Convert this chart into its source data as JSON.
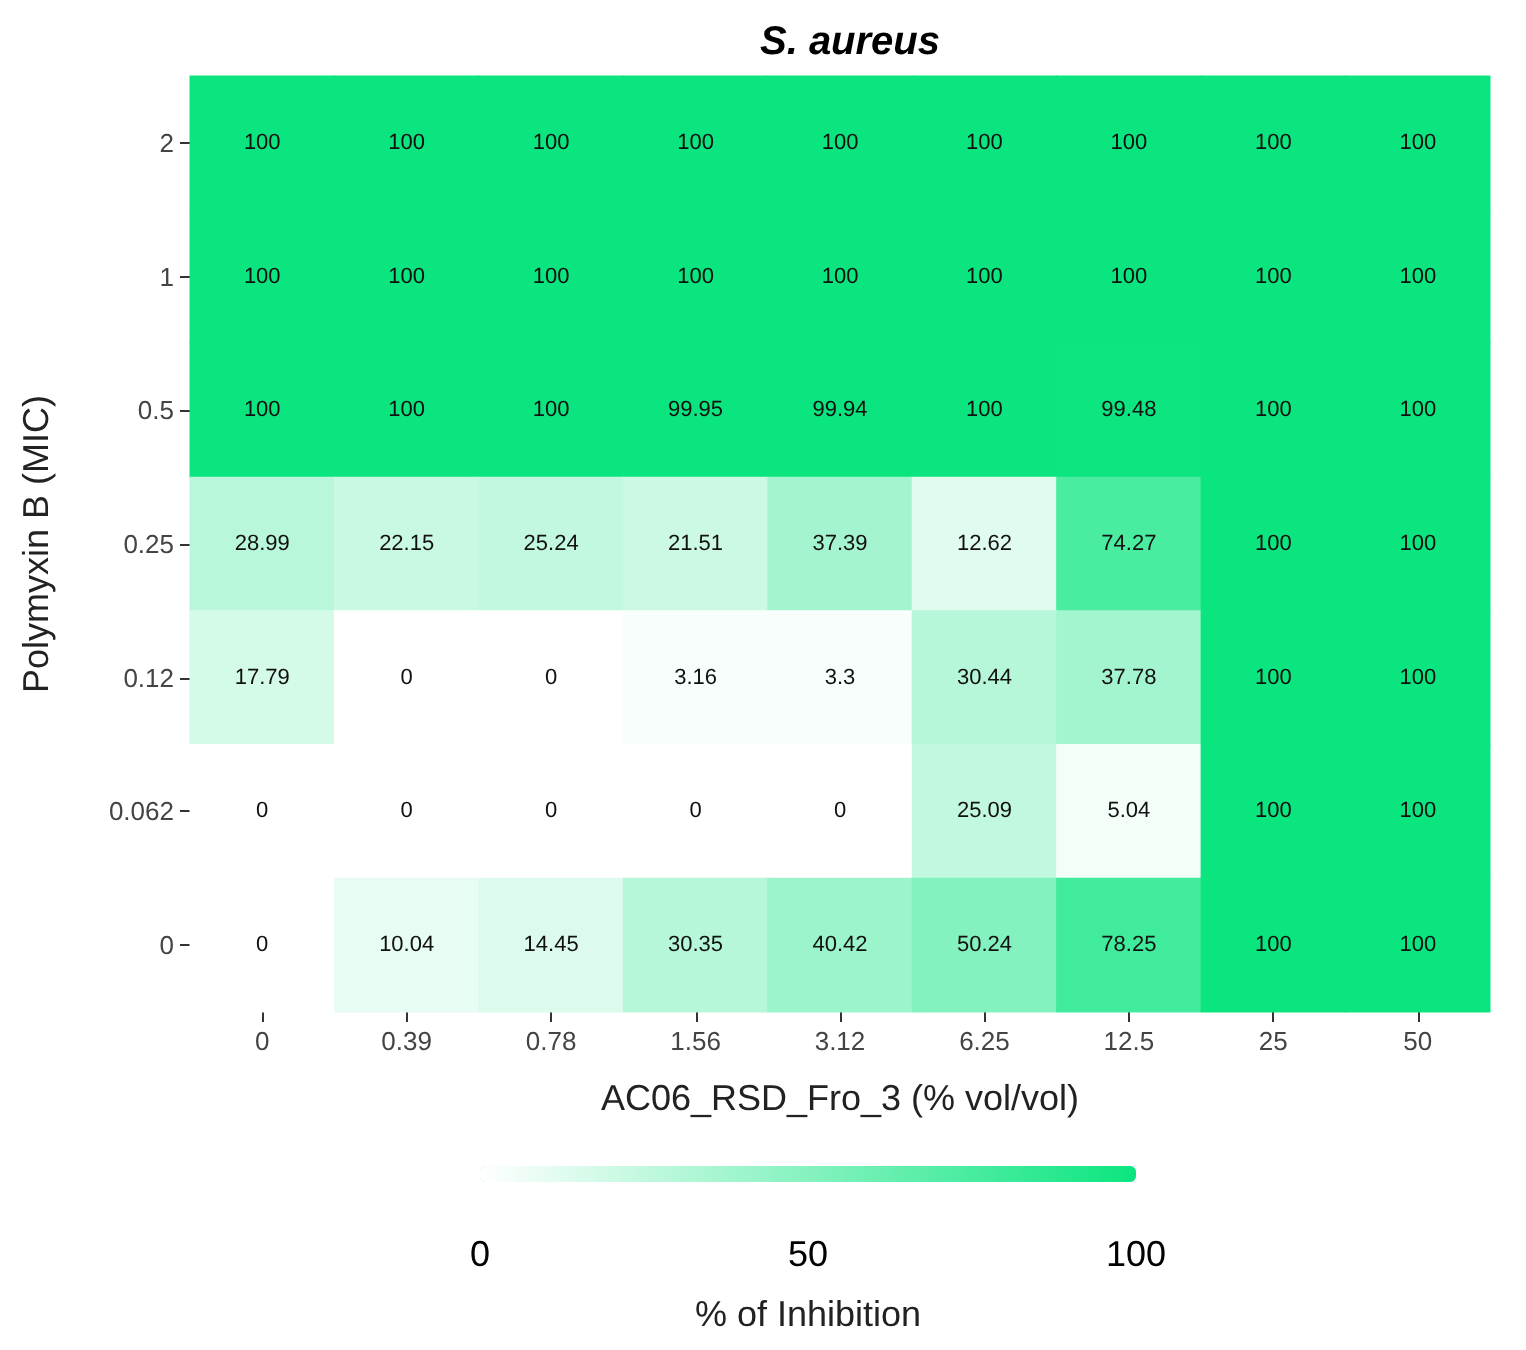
{
  "chart_data": {
    "type": "heatmap",
    "title": "S. aureus",
    "xlabel": "AC06_RSD_Fro_3 (% vol/vol)",
    "ylabel": "Polymyxin B (MIC)",
    "clabel": "% of Inhibition",
    "categories": [
      "0",
      "0.39",
      "0.78",
      "1.56",
      "3.12",
      "6.25",
      "12.5",
      "25",
      "50"
    ],
    "y_categories": [
      "2",
      "1",
      "0.5",
      "0.25",
      "0.12",
      "0.062",
      "0"
    ],
    "cells": [
      [
        100,
        100,
        100,
        100,
        100,
        100,
        100,
        100,
        100
      ],
      [
        100,
        100,
        100,
        100,
        100,
        100,
        100,
        100,
        100
      ],
      [
        100,
        100,
        100,
        99.95,
        99.94,
        100,
        99.48,
        100,
        100
      ],
      [
        28.99,
        22.15,
        25.24,
        21.51,
        37.39,
        12.62,
        74.27,
        100,
        100
      ],
      [
        17.79,
        0,
        0,
        3.16,
        3.3,
        30.44,
        37.78,
        100,
        100
      ],
      [
        0,
        0,
        0,
        0,
        0,
        25.09,
        5.04,
        100,
        100
      ],
      [
        0,
        10.04,
        14.45,
        30.35,
        40.42,
        50.24,
        78.25,
        100,
        100
      ]
    ],
    "data_labels": true,
    "clim": [
      0,
      100
    ],
    "cticks": [
      0,
      50,
      100
    ],
    "colors": [
      "#ffffff",
      "#0be57f"
    ],
    "grid": false
  }
}
